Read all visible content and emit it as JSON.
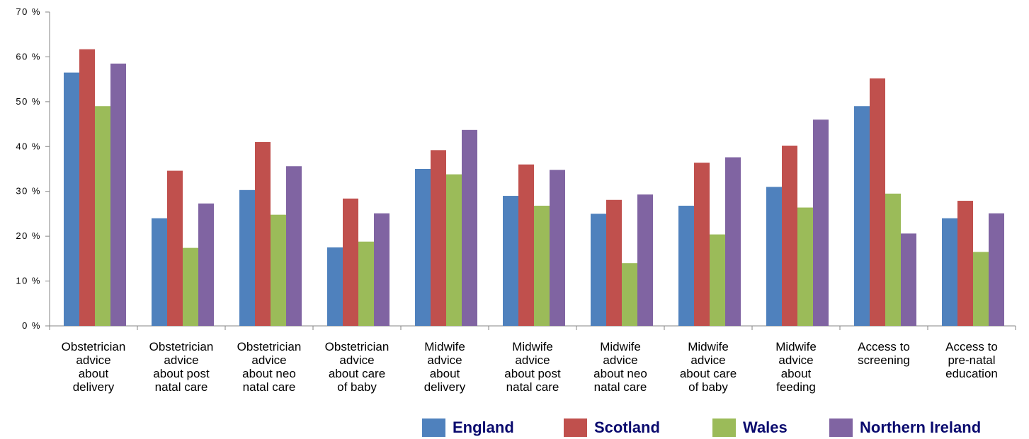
{
  "chart_data": {
    "type": "bar",
    "title": "",
    "xlabel": "",
    "ylabel": "",
    "ylim": [
      0,
      70
    ],
    "yticks": [
      "0 %",
      "10 %",
      "20 %",
      "30 %",
      "40 %",
      "50 %",
      "60 %",
      "70 %"
    ],
    "grid": false,
    "legend_position": "bottom-right",
    "categories": [
      [
        "Obstetrician",
        "advice",
        "about",
        "delivery"
      ],
      [
        "Obstetrician",
        "advice",
        "about post",
        "natal care"
      ],
      [
        "Obstetrician",
        "advice",
        "about neo",
        "natal care"
      ],
      [
        "Obstetrician",
        "advice",
        "about care",
        "of baby"
      ],
      [
        "Midwife",
        "advice",
        "about",
        "delivery"
      ],
      [
        "Midwife",
        "advice",
        "about post",
        "natal care"
      ],
      [
        "Midwife",
        "advice",
        "about neo",
        "natal care"
      ],
      [
        "Midwife",
        "advice",
        "about care",
        "of baby"
      ],
      [
        "Midwife",
        "advice",
        "about",
        "feeding"
      ],
      [
        "Access to",
        "screening"
      ],
      [
        "Access to",
        "pre-natal",
        "education"
      ]
    ],
    "series": [
      {
        "name": "England",
        "color": "#4f81bd",
        "values": [
          56.5,
          24,
          30.3,
          17.5,
          35,
          29,
          25,
          26.8,
          31,
          49,
          24
        ]
      },
      {
        "name": "Scotland",
        "color": "#c0504d",
        "values": [
          61.7,
          34.6,
          41,
          28.4,
          39.2,
          36,
          28.1,
          36.4,
          40.2,
          55.2,
          27.9
        ]
      },
      {
        "name": "Wales",
        "color": "#9bbb59",
        "values": [
          49,
          17.4,
          24.8,
          18.8,
          33.8,
          26.8,
          14,
          20.4,
          26.4,
          29.5,
          16.5
        ]
      },
      {
        "name": "Northern Ireland",
        "color": "#8064a2",
        "values": [
          58.5,
          27.3,
          35.6,
          25.1,
          43.7,
          34.8,
          29.3,
          37.6,
          46,
          20.6,
          25.1
        ]
      }
    ]
  }
}
